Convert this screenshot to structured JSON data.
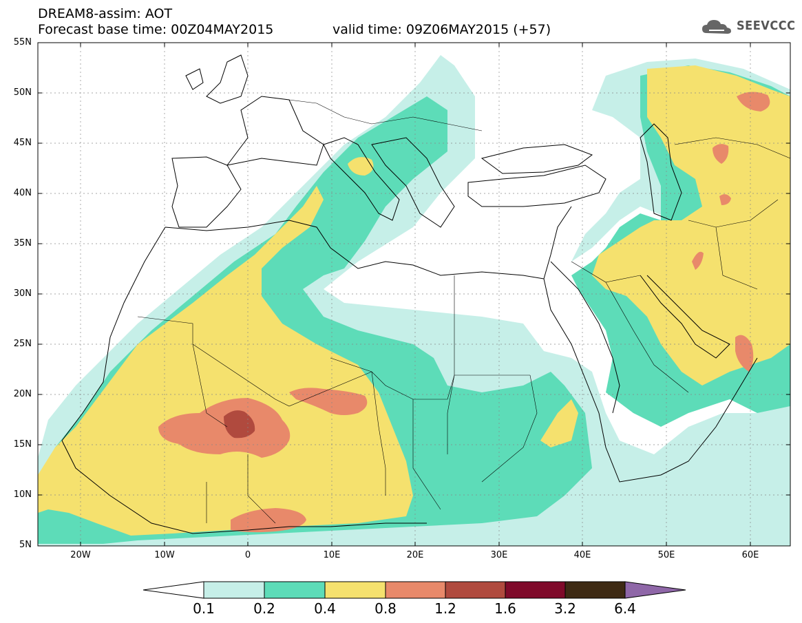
{
  "header": {
    "line1": "DREAM8-assim: AOT",
    "line2": "Forecast base time: 00Z04MAY2015",
    "valid": "valid time: 09Z06MAY2015 (+57)"
  },
  "logo": {
    "text": "SEEVCCC",
    "icon": "cloud-icon"
  },
  "map": {
    "lon_range": [
      -25,
      65
    ],
    "lat_range": [
      5,
      55
    ],
    "lat_ticks": [
      "55N",
      "50N",
      "45N",
      "40N",
      "35N",
      "30N",
      "25N",
      "20N",
      "15N",
      "10N",
      "5N"
    ],
    "lon_ticks": [
      "20W",
      "10W",
      "0",
      "10E",
      "20E",
      "30E",
      "40E",
      "50E",
      "60E"
    ]
  },
  "colorbar": {
    "labels": [
      "0.1",
      "0.2",
      "0.4",
      "0.8",
      "1.2",
      "1.6",
      "3.2",
      "6.4"
    ],
    "colors": [
      "#ffffff",
      "#c6efe8",
      "#5ddcb8",
      "#f5e16e",
      "#e8896a",
      "#b04a3e",
      "#7f0a2a",
      "#3e2a14",
      "#8f67a8"
    ]
  }
}
